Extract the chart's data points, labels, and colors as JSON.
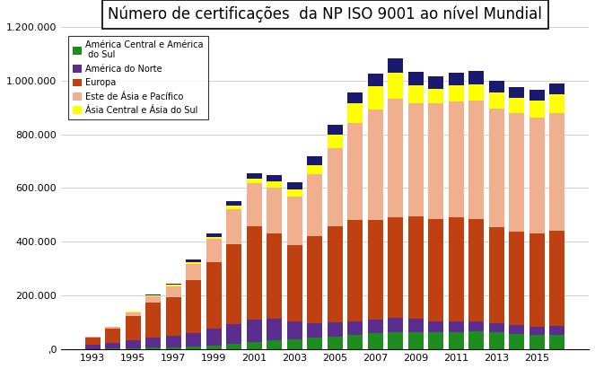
{
  "title": "Número de certificações  da NP ISO 9001 ao nível Mundial",
  "years": [
    1993,
    1994,
    1995,
    1996,
    1997,
    1998,
    1999,
    2000,
    2001,
    2002,
    2003,
    2004,
    2005,
    2006,
    2007,
    2008,
    2009,
    2010,
    2011,
    2012,
    2013,
    2014,
    2015,
    2016
  ],
  "series": {
    "América Central e América\n do Sul": [
      1610,
      2760,
      4580,
      6790,
      8560,
      11090,
      14650,
      20420,
      27970,
      34174,
      38245,
      43285,
      47026,
      53746,
      59287,
      63540,
      65007,
      63947,
      65376,
      67399,
      64359,
      58550,
      54358,
      54904
    ],
    "América do Norte": [
      15008,
      21218,
      30649,
      38857,
      43685,
      50477,
      62224,
      73696,
      82355,
      79833,
      67415,
      55150,
      52424,
      51064,
      52285,
      52998,
      48700,
      41760,
      38974,
      36737,
      33008,
      31099,
      30082,
      31099
    ],
    "Europa": [
      27816,
      52373,
      88347,
      127110,
      143680,
      197017,
      247867,
      297479,
      347094,
      318145,
      281499,
      323200,
      357568,
      376923,
      370674,
      375937,
      380985,
      379543,
      387963,
      380701,
      358610,
      349834,
      347947,
      356553
    ],
    "Este de Ásia e Pacífico": [
      3500,
      6900,
      15000,
      25000,
      40000,
      60000,
      85000,
      130000,
      160000,
      170000,
      180000,
      230000,
      290000,
      360000,
      410000,
      440000,
      420000,
      430000,
      430000,
      440000,
      440000,
      440000,
      430000,
      435000
    ],
    "Ásia Central e Ásia do Sul": [
      200,
      400,
      900,
      1800,
      3600,
      6000,
      9000,
      13000,
      18000,
      22000,
      27000,
      35000,
      52000,
      73000,
      87000,
      97000,
      68000,
      53000,
      60000,
      62000,
      59000,
      57000,
      62000,
      71000
    ],
    "África": [
      350,
      700,
      1200,
      2100,
      3100,
      4500,
      6000,
      8000,
      10000,
      11500,
      12800,
      14800,
      16000,
      18000,
      20500,
      23200,
      22000,
      21000,
      21000,
      22000,
      20000,
      19000,
      18500,
      18700
    ],
    "Oriente Médio": [
      200,
      400,
      800,
      1500,
      2500,
      4000,
      6000,
      8000,
      11000,
      13500,
      15000,
      17500,
      20000,
      24000,
      27500,
      30000,
      27000,
      25000,
      25000,
      26000,
      23500,
      21500,
      21000,
      22000
    ]
  },
  "colors": {
    "América Central e América\n do Sul": "#1e8c1e",
    "América do Norte": "#5b2d8e",
    "Europa": "#bf4010",
    "Este de Ásia e Pacífico": "#f0b090",
    "Ásia Central e Ásia do Sul": "#ffff00",
    "África": "#191970",
    "Oriente Médio": "#191970"
  },
  "ylim": [
    0,
    1200000
  ],
  "yticks": [
    0,
    200000,
    400000,
    600000,
    800000,
    1000000,
    1200000
  ],
  "background_color": "#ffffff",
  "legend_order": [
    "América Central e América\n do Sul",
    "América do Norte",
    "Europa",
    "Este de Ásia e Pacífico",
    "Ásia Central e Ásia do Sul"
  ]
}
